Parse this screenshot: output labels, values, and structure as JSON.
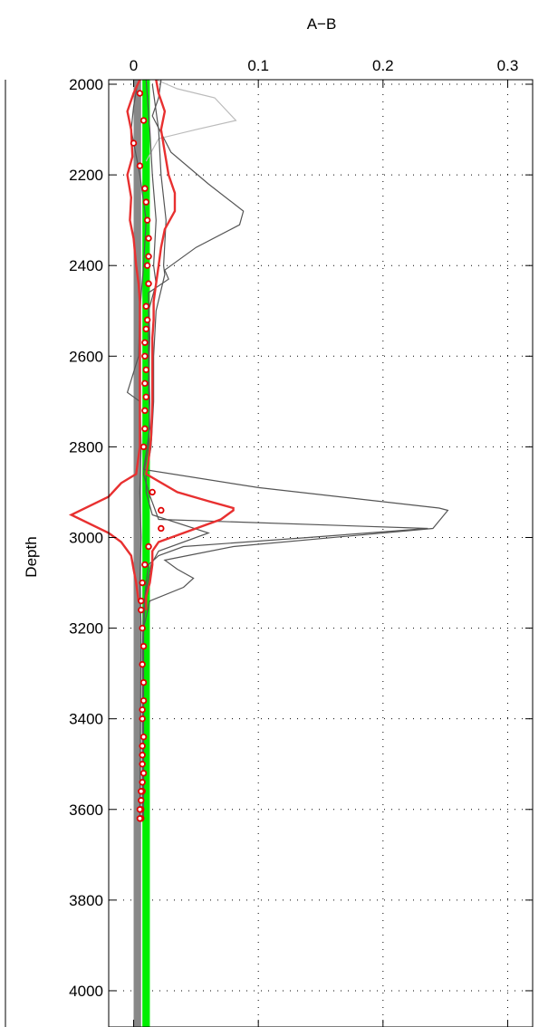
{
  "chart_data": {
    "type": "line",
    "title": "A−B",
    "xlabel": "",
    "ylabel": "Depth",
    "xlim": [
      -0.02,
      0.32
    ],
    "ylim": [
      4080,
      1990
    ],
    "y_reversed": true,
    "grid": true,
    "x_ticks": [
      0,
      0.1,
      0.2,
      0.3
    ],
    "x_tick_labels": [
      "0",
      "0.1",
      "0.2",
      "0.3"
    ],
    "y_ticks": [
      2000,
      2200,
      2400,
      2600,
      2800,
      3000,
      3200,
      3400,
      3600,
      3800,
      4000
    ],
    "y_tick_labels": [
      "2000",
      "2200",
      "2400",
      "2600",
      "2800",
      "3000",
      "3200",
      "3400",
      "3600",
      "3800",
      "4000"
    ],
    "colors": {
      "individual": "#555555",
      "individual_light": "#bbbbbb",
      "bounds": "#e83030",
      "mean": "#e00000",
      "green_band": "#00ee00",
      "gray_band": "#888888"
    },
    "background_lines": [
      {
        "color": "#bbbbbb",
        "points": [
          [
            0.018,
            1990
          ],
          [
            0.035,
            2010
          ],
          [
            0.065,
            2030
          ],
          [
            0.082,
            2080
          ],
          [
            0.05,
            2100
          ],
          [
            0.02,
            2120
          ],
          [
            0.01,
            2170
          ]
        ]
      },
      {
        "color": "#555555",
        "points": [
          [
            0.022,
            1990
          ],
          [
            0.02,
            2030
          ],
          [
            0.015,
            2070
          ],
          [
            0.03,
            2150
          ],
          [
            0.06,
            2220
          ],
          [
            0.088,
            2280
          ],
          [
            0.085,
            2310
          ],
          [
            0.05,
            2360
          ],
          [
            0.025,
            2410
          ],
          [
            0.028,
            2430
          ],
          [
            0.012,
            2460
          ],
          [
            0.013,
            2560
          ],
          [
            0.012,
            2660
          ],
          [
            0.013,
            2760
          ],
          [
            0.008,
            2850
          ],
          [
            0.1,
            2890
          ],
          [
            0.245,
            2935
          ],
          [
            0.252,
            2940
          ],
          [
            0.24,
            2980
          ],
          [
            0.08,
            3020
          ],
          [
            0.025,
            3050
          ],
          [
            0.035,
            3070
          ],
          [
            0.048,
            3090
          ],
          [
            0.04,
            3110
          ],
          [
            0.013,
            3140
          ],
          [
            0.008,
            3200
          ],
          [
            0.008,
            3620
          ]
        ]
      },
      {
        "color": "#555555",
        "points": [
          [
            0.01,
            1990
          ],
          [
            0.013,
            2100
          ],
          [
            0.015,
            2200
          ],
          [
            0.018,
            2300
          ],
          [
            0.016,
            2400
          ],
          [
            0.018,
            2440
          ],
          [
            0.012,
            2500
          ],
          [
            0.012,
            2600
          ],
          [
            0.013,
            2700
          ],
          [
            0.012,
            2800
          ],
          [
            0.008,
            2860
          ],
          [
            0.012,
            2900
          ],
          [
            0.02,
            2960
          ],
          [
            0.236,
            2980
          ],
          [
            0.14,
            3000
          ],
          [
            0.04,
            3020
          ],
          [
            0.02,
            3040
          ],
          [
            0.012,
            3060
          ],
          [
            0.01,
            3100
          ],
          [
            0.008,
            3160
          ],
          [
            0.007,
            3250
          ],
          [
            0.007,
            3620
          ]
        ]
      },
      {
        "color": "#555555",
        "points": [
          [
            0.003,
            2000
          ],
          [
            0.0,
            2050
          ],
          [
            -0.002,
            2100
          ],
          [
            0.005,
            2200
          ],
          [
            0.01,
            2300
          ],
          [
            0.008,
            2400
          ],
          [
            0.005,
            2500
          ],
          [
            0.004,
            2600
          ],
          [
            -0.005,
            2680
          ],
          [
            0.005,
            2700
          ],
          [
            0.006,
            2800
          ],
          [
            0.005,
            2900
          ],
          [
            0.006,
            3000
          ],
          [
            0.005,
            3100
          ],
          [
            0.006,
            3200
          ],
          [
            0.005,
            3620
          ]
        ]
      },
      {
        "color": "#555555",
        "points": [
          [
            0.015,
            2000
          ],
          [
            0.02,
            2100
          ],
          [
            0.022,
            2200
          ],
          [
            0.026,
            2300
          ],
          [
            0.024,
            2400
          ],
          [
            0.025,
            2420
          ],
          [
            0.018,
            2500
          ],
          [
            0.016,
            2600
          ],
          [
            0.016,
            2700
          ],
          [
            0.014,
            2800
          ],
          [
            0.01,
            2860
          ],
          [
            0.01,
            2900
          ],
          [
            0.015,
            2950
          ],
          [
            0.06,
            2990
          ],
          [
            0.02,
            3030
          ],
          [
            0.014,
            3060
          ],
          [
            0.01,
            3120
          ],
          [
            0.008,
            3200
          ],
          [
            0.007,
            3620
          ]
        ]
      }
    ],
    "bounds": [
      {
        "name": "",
        "points": [
          [
            0.018,
            1990
          ],
          [
            0.02,
            2020
          ],
          [
            0.025,
            2060
          ],
          [
            0.022,
            2100
          ],
          [
            0.025,
            2150
          ],
          [
            0.028,
            2200
          ],
          [
            0.033,
            2240
          ],
          [
            0.033,
            2280
          ],
          [
            0.025,
            2320
          ],
          [
            0.022,
            2360
          ],
          [
            0.02,
            2400
          ],
          [
            0.018,
            2440
          ],
          [
            0.016,
            2480
          ],
          [
            0.016,
            2520
          ],
          [
            0.015,
            2560
          ],
          [
            0.015,
            2620
          ],
          [
            0.015,
            2700
          ],
          [
            0.014,
            2780
          ],
          [
            0.012,
            2830
          ],
          [
            0.01,
            2860
          ],
          [
            0.035,
            2900
          ],
          [
            0.06,
            2920
          ],
          [
            0.08,
            2935
          ],
          [
            0.08,
            2940
          ],
          [
            0.07,
            2960
          ],
          [
            0.04,
            2990
          ],
          [
            0.02,
            3010
          ],
          [
            0.015,
            3030
          ],
          [
            0.015,
            3060
          ],
          [
            0.013,
            3100
          ],
          [
            0.01,
            3130
          ],
          [
            0.01,
            3160
          ]
        ]
      },
      {
        "name": "",
        "points": [
          [
            0.005,
            1990
          ],
          [
            0.0,
            2020
          ],
          [
            -0.005,
            2060
          ],
          [
            -0.002,
            2100
          ],
          [
            -0.001,
            2160
          ],
          [
            -0.005,
            2200
          ],
          [
            -0.002,
            2250
          ],
          [
            -0.003,
            2300
          ],
          [
            0.0,
            2340
          ],
          [
            0.002,
            2400
          ],
          [
            0.004,
            2440
          ],
          [
            0.005,
            2480
          ],
          [
            0.005,
            2520
          ],
          [
            0.005,
            2560
          ],
          [
            0.005,
            2620
          ],
          [
            0.005,
            2700
          ],
          [
            0.005,
            2800
          ],
          [
            0.002,
            2860
          ],
          [
            -0.01,
            2880
          ],
          [
            -0.02,
            2910
          ],
          [
            -0.05,
            2950
          ],
          [
            -0.02,
            2990
          ],
          [
            -0.01,
            3010
          ],
          [
            -0.002,
            3040
          ],
          [
            0.0,
            3070
          ],
          [
            0.002,
            3100
          ],
          [
            0.004,
            3140
          ]
        ]
      }
    ],
    "mean_points": {
      "x": [
        0.005,
        0.008,
        0.0,
        0.005,
        0.009,
        0.01,
        0.011,
        0.012,
        0.012,
        0.011,
        0.012,
        0.01,
        0.011,
        0.01,
        0.009,
        0.009,
        0.01,
        0.009,
        0.01,
        0.009,
        0.009,
        0.008,
        0.015,
        0.022,
        0.022,
        0.012,
        0.009,
        0.007,
        0.006,
        0.006,
        0.007,
        0.008,
        0.007,
        0.008,
        0.008,
        0.007,
        0.007,
        0.008,
        0.007,
        0.007,
        0.007,
        0.008,
        0.007,
        0.007,
        0.006,
        0.006,
        0.006,
        0.005,
        0.006,
        0.005
      ],
      "y": [
        2020,
        2080,
        2130,
        2180,
        2230,
        2260,
        2300,
        2340,
        2380,
        2400,
        2440,
        2490,
        2520,
        2540,
        2570,
        2600,
        2630,
        2660,
        2690,
        2720,
        2760,
        2800,
        2900,
        2940,
        2980,
        3020,
        3060,
        3100,
        3140,
        3160,
        3200,
        3240,
        3280,
        3320,
        3360,
        3380,
        3400,
        3440,
        3460,
        3480,
        3500,
        3520,
        3540,
        3560,
        3580,
        3600,
        3620,
        3600,
        3560,
        3620
      ]
    },
    "vertical_bands": [
      {
        "name": "",
        "color": "#888888",
        "x": 0.0,
        "width_data": 0.006
      },
      {
        "name": "",
        "color": "#00ee00",
        "x": 0.007,
        "width_data": 0.006
      }
    ]
  }
}
